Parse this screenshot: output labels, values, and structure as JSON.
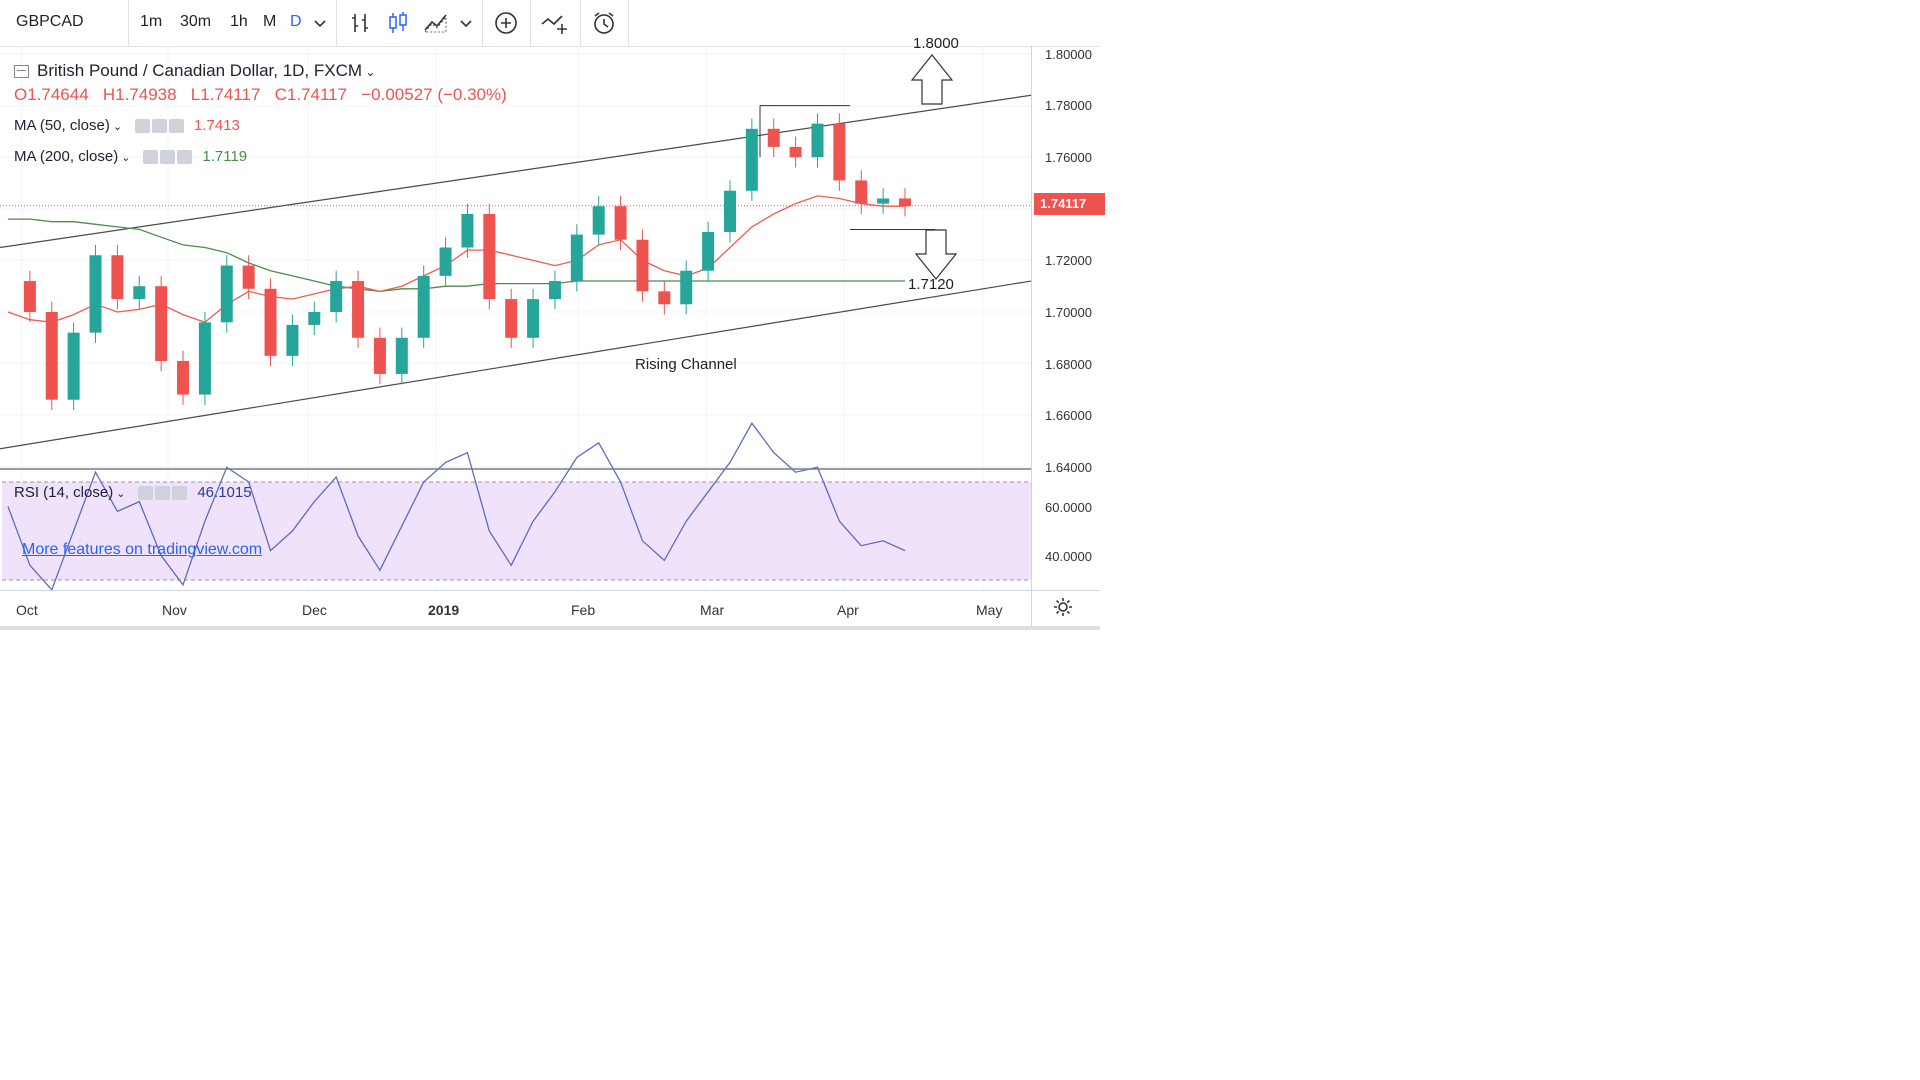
{
  "toolbar": {
    "symbol": "GBPCAD",
    "timeframes": [
      "1m",
      "30m",
      "1h",
      "D"
    ],
    "active_timeframe": "D",
    "icons": [
      "chevron-down-icon",
      "bar-style-icon",
      "candle-style-icon",
      "area-style-icon",
      "chevron-down-icon",
      "add-indicator-icon",
      "compare-icon",
      "alert-clock-icon"
    ]
  },
  "legend": {
    "title": "British Pound / Canadian Dollar, 1D, FXCM",
    "ohlc": {
      "open": "O1.74644",
      "high": "H1.74938",
      "low": "L1.74117",
      "close": "C1.74117",
      "change": "−0.00527 (−0.30%)"
    },
    "ma50": {
      "label": "MA (50, close)",
      "value": "1.7413"
    },
    "ma200": {
      "label": "MA (200, close)",
      "value": "1.7119"
    },
    "rsi": {
      "label": "RSI (14, close)",
      "value": "46.1015"
    }
  },
  "price_axis": {
    "ticks": [
      "1.80000",
      "1.78000",
      "1.76000",
      "1.72000",
      "1.70000",
      "1.68000",
      "1.66000",
      "1.64000"
    ],
    "last_price": "1.74117"
  },
  "rsi_axis": {
    "ticks": [
      "60.0000",
      "40.0000"
    ]
  },
  "time_axis": {
    "labels": [
      "Oct",
      "Nov",
      "Dec",
      "2019",
      "Feb",
      "Mar",
      "Apr",
      "May"
    ]
  },
  "annotations": {
    "upper_target": "1.8000",
    "lower_target": "1.7120",
    "channel_label": "Rising Channel",
    "promo_text": "More features on tradingview.com"
  },
  "colors": {
    "up": "#26a69a",
    "down": "#ef5350",
    "ma50": "#f05b4f",
    "ma200": "#4c8c4a",
    "rsi": "#5c6bc0",
    "rsi_band": "#efe2fa"
  },
  "chart_data": {
    "type": "line",
    "series": [
      {
        "name": "GBPCAD close",
        "values": [
          1.712,
          1.7,
          1.666,
          1.692,
          1.722,
          1.705,
          1.71,
          1.681,
          1.668,
          1.696,
          1.718,
          1.709,
          1.683,
          1.695,
          1.7,
          1.712,
          1.69,
          1.676,
          1.69,
          1.714,
          1.725,
          1.738,
          1.705,
          1.69,
          1.705,
          1.712,
          1.73,
          1.741,
          1.728,
          1.708,
          1.703,
          1.716,
          1.731,
          1.747,
          1.771,
          1.764,
          1.76,
          1.773,
          1.751,
          1.742,
          1.744,
          1.741
        ]
      },
      {
        "name": "MA (50, close)",
        "values": [
          1.7,
          1.697,
          1.696,
          1.699,
          1.703,
          1.7,
          1.701,
          1.703,
          1.699,
          1.696,
          1.703,
          1.708,
          1.706,
          1.705,
          1.707,
          1.709,
          1.71,
          1.708,
          1.71,
          1.714,
          1.718,
          1.724,
          1.724,
          1.722,
          1.72,
          1.718,
          1.72,
          1.726,
          1.728,
          1.72,
          1.716,
          1.714,
          1.717,
          1.725,
          1.733,
          1.738,
          1.742,
          1.745,
          1.744,
          1.742,
          1.741,
          1.741
        ]
      },
      {
        "name": "MA (200, close)",
        "values": [
          1.736,
          1.736,
          1.735,
          1.735,
          1.734,
          1.733,
          1.732,
          1.729,
          1.726,
          1.725,
          1.723,
          1.719,
          1.716,
          1.714,
          1.712,
          1.71,
          1.709,
          1.708,
          1.709,
          1.709,
          1.71,
          1.71,
          1.711,
          1.711,
          1.711,
          1.711,
          1.712,
          1.712,
          1.712,
          1.712,
          1.712,
          1.712,
          1.712,
          1.712,
          1.712,
          1.712,
          1.712,
          1.712,
          1.712,
          1.712,
          1.712,
          1.712
        ]
      },
      {
        "name": "RSI (14, close)",
        "values": [
          55,
          43,
          38,
          50,
          62,
          54,
          56,
          45,
          39,
          52,
          63,
          60,
          46,
          50,
          56,
          61,
          49,
          42,
          51,
          60,
          64,
          66,
          50,
          43,
          52,
          58,
          65,
          68,
          60,
          48,
          44,
          52,
          58,
          64,
          72,
          66,
          62,
          63,
          52,
          47,
          48,
          46
        ]
      }
    ],
    "ylim": [
      1.64,
      1.8
    ],
    "rsi_ylim": [
      20,
      80
    ],
    "channel": {
      "upper": [
        [
          0,
          1.725
        ],
        [
          41,
          1.784
        ]
      ],
      "lower": [
        [
          0,
          1.647
        ],
        [
          41,
          1.712
        ]
      ]
    },
    "resistance": 1.78,
    "support": 1.732
  }
}
